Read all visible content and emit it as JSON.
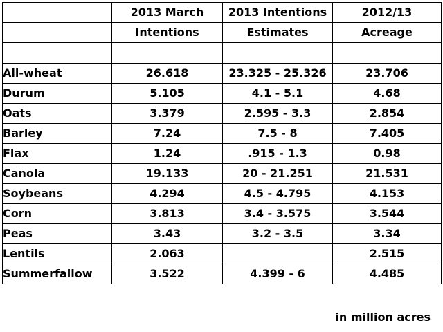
{
  "headers": {
    "row1": [
      "",
      "2013 March",
      "2013 Intentions",
      "2012/13"
    ],
    "row2": [
      "",
      "Intentions",
      "Estimates",
      "Acreage"
    ]
  },
  "rows": [
    {
      "crop": "All-wheat",
      "march": "26.618",
      "estimates": "23.325 - 25.326",
      "acreage": "23.706"
    },
    {
      "crop": "Durum",
      "march": "5.105",
      "estimates": "4.1 - 5.1",
      "acreage": "4.68"
    },
    {
      "crop": "Oats",
      "march": "3.379",
      "estimates": "2.595 - 3.3",
      "acreage": "2.854"
    },
    {
      "crop": "Barley",
      "march": "7.24",
      "estimates": "7.5 - 8",
      "acreage": "7.405"
    },
    {
      "crop": "Flax",
      "march": "1.24",
      "estimates": ".915 - 1.3",
      "acreage": "0.98"
    },
    {
      "crop": "Canola",
      "march": "19.133",
      "estimates": "20 - 21.251",
      "acreage": "21.531"
    },
    {
      "crop": "Soybeans",
      "march": "4.294",
      "estimates": "4.5 - 4.795",
      "acreage": "4.153"
    },
    {
      "crop": "Corn",
      "march": "3.813",
      "estimates": "3.4 - 3.575",
      "acreage": "3.544"
    },
    {
      "crop": "Peas",
      "march": "3.43",
      "estimates": "3.2 - 3.5",
      "acreage": "3.34"
    },
    {
      "crop": "Lentils",
      "march": "2.063",
      "estimates": "",
      "acreage": "2.515"
    },
    {
      "crop": "Summerfallow",
      "march": "3.522",
      "estimates": "4.399 - 6",
      "acreage": "4.485"
    }
  ],
  "footnote": "in million acres"
}
